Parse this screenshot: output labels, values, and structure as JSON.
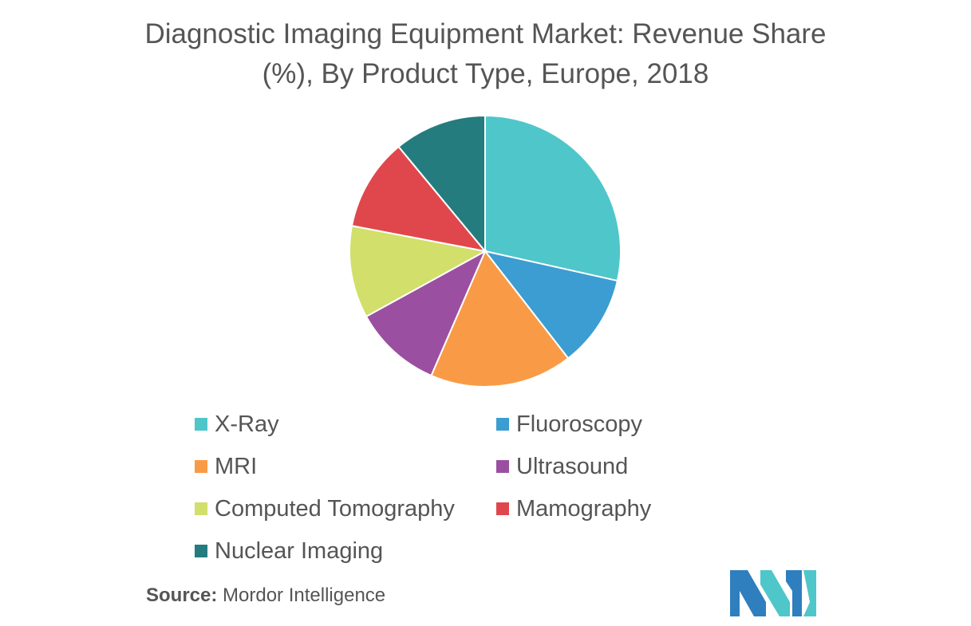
{
  "chart_data": {
    "type": "pie",
    "title": "Diagnostic Imaging Equipment Market: Revenue Share (%), By Product Type, Europe, 2018",
    "title_lines": [
      "Diagnostic Imaging Equipment Market: Revenue Share",
      "(%), By Product Type, Europe, 2018"
    ],
    "slices": [
      {
        "label": "X-Ray",
        "value": 28.5,
        "color": "#4fc6c9"
      },
      {
        "label": "Fluoroscopy",
        "value": 11.0,
        "color": "#3b9dd1"
      },
      {
        "label": "MRI",
        "value": 17.0,
        "color": "#f99b46"
      },
      {
        "label": "Ultrasound",
        "value": 10.5,
        "color": "#9b4fa0"
      },
      {
        "label": "Computed Tomography",
        "value": 11.0,
        "color": "#d2df6a"
      },
      {
        "label": "Mamography",
        "value": 11.0,
        "color": "#e0474c"
      },
      {
        "label": "Nuclear Imaging",
        "value": 11.0,
        "color": "#247c7e"
      }
    ],
    "legend_position": "bottom"
  },
  "source": {
    "label": "Source:",
    "text": "Mordor Intelligence"
  },
  "logo": {
    "icon": "mordor-intelligence-logo",
    "colors": [
      "#2f7fbf",
      "#4fc6c9"
    ]
  }
}
